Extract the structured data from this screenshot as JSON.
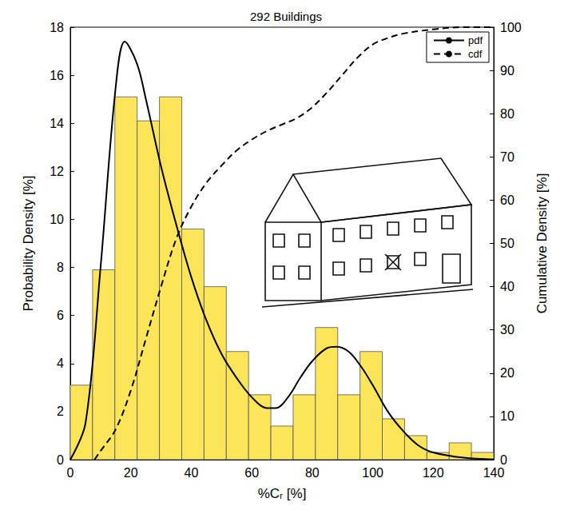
{
  "chart_data": {
    "type": "histogram",
    "title": "292 Buildings",
    "xlabel": "%Cᵣ [%]",
    "ylabel": "Probability Density [%]",
    "y2label": "Cumulative Density [%]",
    "bins": [
      0,
      7.368,
      14.737,
      22.105,
      29.474,
      36.842,
      44.211,
      51.579,
      58.947,
      66.316,
      73.684,
      81.053,
      88.421,
      95.789,
      103.158,
      110.526,
      117.895,
      125.263,
      132.632,
      140
    ],
    "values": [
      3.1,
      7.9,
      15.1,
      14.1,
      15.1,
      9.6,
      7.2,
      4.5,
      2.7,
      1.4,
      2.7,
      5.5,
      2.7,
      4.5,
      1.7,
      1.0,
      0.3,
      0.7,
      0.3
    ],
    "color": "#fde55a",
    "series": [
      {
        "name": "pdf",
        "type": "line",
        "line_style": "solid",
        "color": "#000000",
        "x": [
          0,
          5,
          10,
          15,
          18,
          22,
          25,
          30,
          35,
          40,
          45,
          50,
          55,
          60,
          65,
          68,
          72,
          76,
          80,
          85,
          88,
          92,
          96,
          100,
          105,
          110,
          115,
          120,
          130,
          140
        ],
        "values": [
          0,
          1.5,
          8,
          15.5,
          17.4,
          16.5,
          15,
          12.2,
          9.8,
          7.6,
          5.8,
          4.4,
          3.4,
          2.6,
          2.15,
          2.15,
          2.6,
          3.4,
          4.1,
          4.65,
          4.7,
          4.5,
          3.9,
          3.1,
          2.0,
          1.2,
          0.6,
          0.3,
          0.08,
          0.01
        ]
      },
      {
        "name": "cdf",
        "type": "line",
        "line_style": "dashed",
        "color": "#000000",
        "axis": "y2",
        "x": [
          8,
          10,
          15,
          20,
          25,
          30,
          35,
          40,
          45,
          50,
          55,
          60,
          65,
          70,
          75,
          80,
          85,
          90,
          95,
          100,
          105,
          110,
          120,
          130,
          140
        ],
        "values": [
          0,
          2,
          7,
          16,
          28,
          40,
          51,
          58.5,
          64,
          68,
          71.5,
          74,
          76,
          77.5,
          79,
          81.5,
          85,
          89,
          93,
          96,
          97.5,
          98.5,
          99.5,
          100,
          100
        ]
      }
    ],
    "xlim": [
      0,
      140
    ],
    "xticks": [
      0,
      20,
      40,
      60,
      80,
      100,
      120,
      140
    ],
    "ylim": [
      0,
      18
    ],
    "yticks": [
      0,
      2,
      4,
      6,
      8,
      10,
      12,
      14,
      16,
      18
    ],
    "y2lim": [
      0,
      100
    ],
    "y2ticks": [
      0,
      10,
      20,
      30,
      40,
      50,
      60,
      70,
      80,
      90,
      100
    ],
    "legend": "upper right",
    "grid": false
  }
}
